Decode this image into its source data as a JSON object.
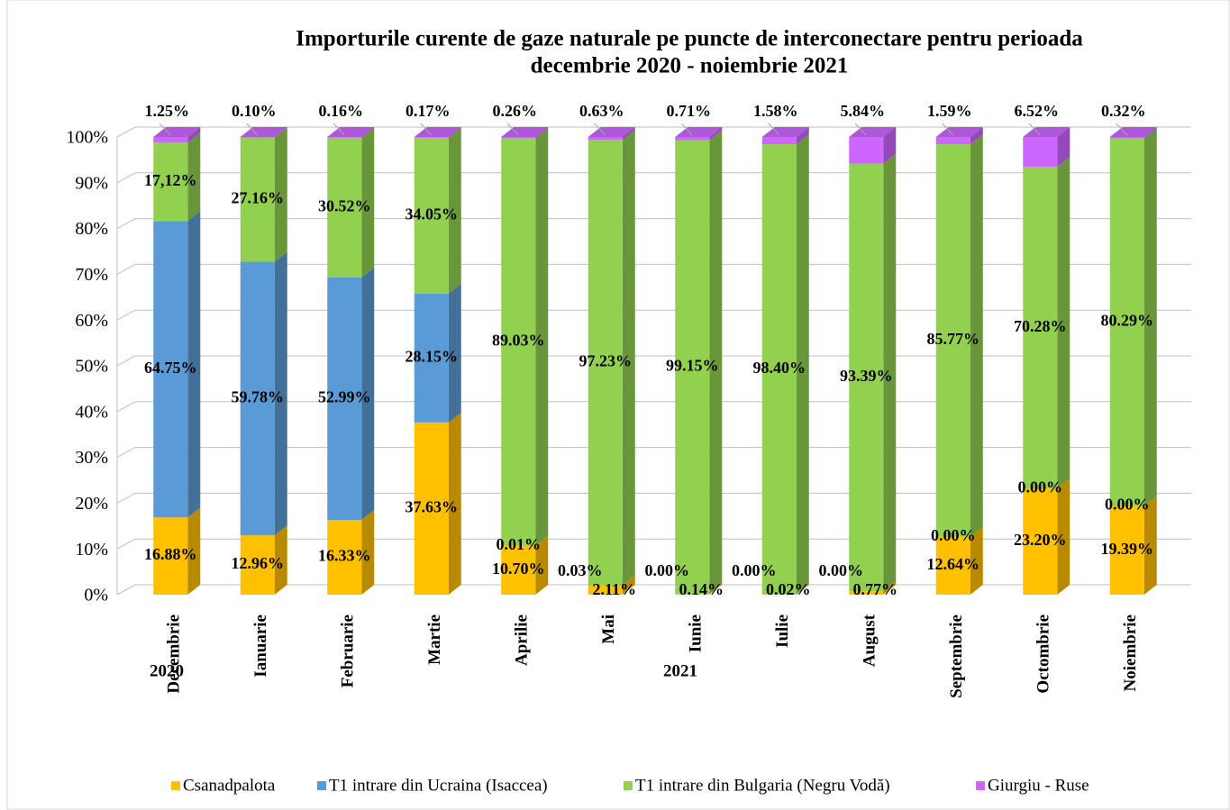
{
  "chart_data": {
    "type": "bar3d_stacked",
    "title": [
      "Importurile curente de gaze naturale pe puncte de interconectare pentru perioada",
      "decembrie 2020 - noiembrie 2021"
    ],
    "categories": [
      "Decembrie",
      "Ianuarie",
      "Februarie",
      "Martie",
      "Aprilie",
      "Mai",
      "Iunie",
      "Iulie",
      "August",
      "Septembrie",
      "Octombrie",
      "Noiembrie"
    ],
    "year_labels": [
      "2020",
      "2021"
    ],
    "series": [
      {
        "name": "Csanadpalota",
        "color": "#ffc000",
        "values": [
          16.88,
          12.96,
          16.33,
          37.63,
          10.7,
          2.11,
          0.14,
          0.02,
          0.77,
          12.64,
          23.2,
          19.39
        ],
        "value_labels": [
          "16.88%",
          "12.96%",
          "16.33%",
          "37.63%",
          "10.70%",
          "2.11%",
          "0.14%",
          "0.02%",
          "0.77%",
          "12.64%",
          "23.20%",
          "19.39%"
        ]
      },
      {
        "name": "T1 intrare din Ucraina (Isaccea)",
        "color": "#5b9bd5",
        "values": [
          64.75,
          59.78,
          52.99,
          28.15,
          0.01,
          0.03,
          0.0,
          0.0,
          0.0,
          0.0,
          0.0,
          0.0
        ],
        "value_labels": [
          "64.75%",
          "59.78%",
          "52.99%",
          "28.15%",
          "0.01%",
          "0.03%",
          "0.00%",
          "0.00%",
          "0.00%",
          "0.00%",
          "0.00%",
          "0.00%"
        ]
      },
      {
        "name": "T1 intrare din Bulgaria (Negru Vodă)",
        "color": "#92d050",
        "values": [
          17.12,
          27.16,
          30.52,
          34.05,
          89.03,
          97.23,
          99.15,
          98.4,
          93.39,
          85.77,
          70.28,
          80.29
        ],
        "value_labels": [
          "17,12%",
          "27.16%",
          "30.52%",
          "34.05%",
          "89.03%",
          "97.23%",
          "99.15%",
          "98.40%",
          "93.39%",
          "85.77%",
          "70.28%",
          "80.29%"
        ]
      },
      {
        "name": "Giurgiu - Ruse",
        "color": "#cc66ff",
        "values": [
          1.25,
          0.1,
          0.16,
          0.17,
          0.26,
          0.63,
          0.71,
          1.58,
          5.84,
          1.59,
          6.52,
          0.32
        ],
        "value_labels": [
          "1.25%",
          "0.10%",
          "0.16%",
          "0.17%",
          "0.26%",
          "0.63%",
          "0.71%",
          "1.58%",
          "5.84%",
          "1.59%",
          "6.52%",
          "0.32%"
        ]
      }
    ],
    "ylim": [
      0,
      100
    ],
    "yticks": [
      {
        "value": 0,
        "label": "0%"
      },
      {
        "value": 10,
        "label": "10%"
      },
      {
        "value": 20,
        "label": "20%"
      },
      {
        "value": 30,
        "label": "30%"
      },
      {
        "value": 40,
        "label": "40%"
      },
      {
        "value": 50,
        "label": "50%"
      },
      {
        "value": 60,
        "label": "60%"
      },
      {
        "value": 70,
        "label": "70%"
      },
      {
        "value": 80,
        "label": "80%"
      },
      {
        "value": 90,
        "label": "90%"
      },
      {
        "value": 100,
        "label": "100%"
      }
    ],
    "grid": true,
    "legend": "bottom"
  }
}
